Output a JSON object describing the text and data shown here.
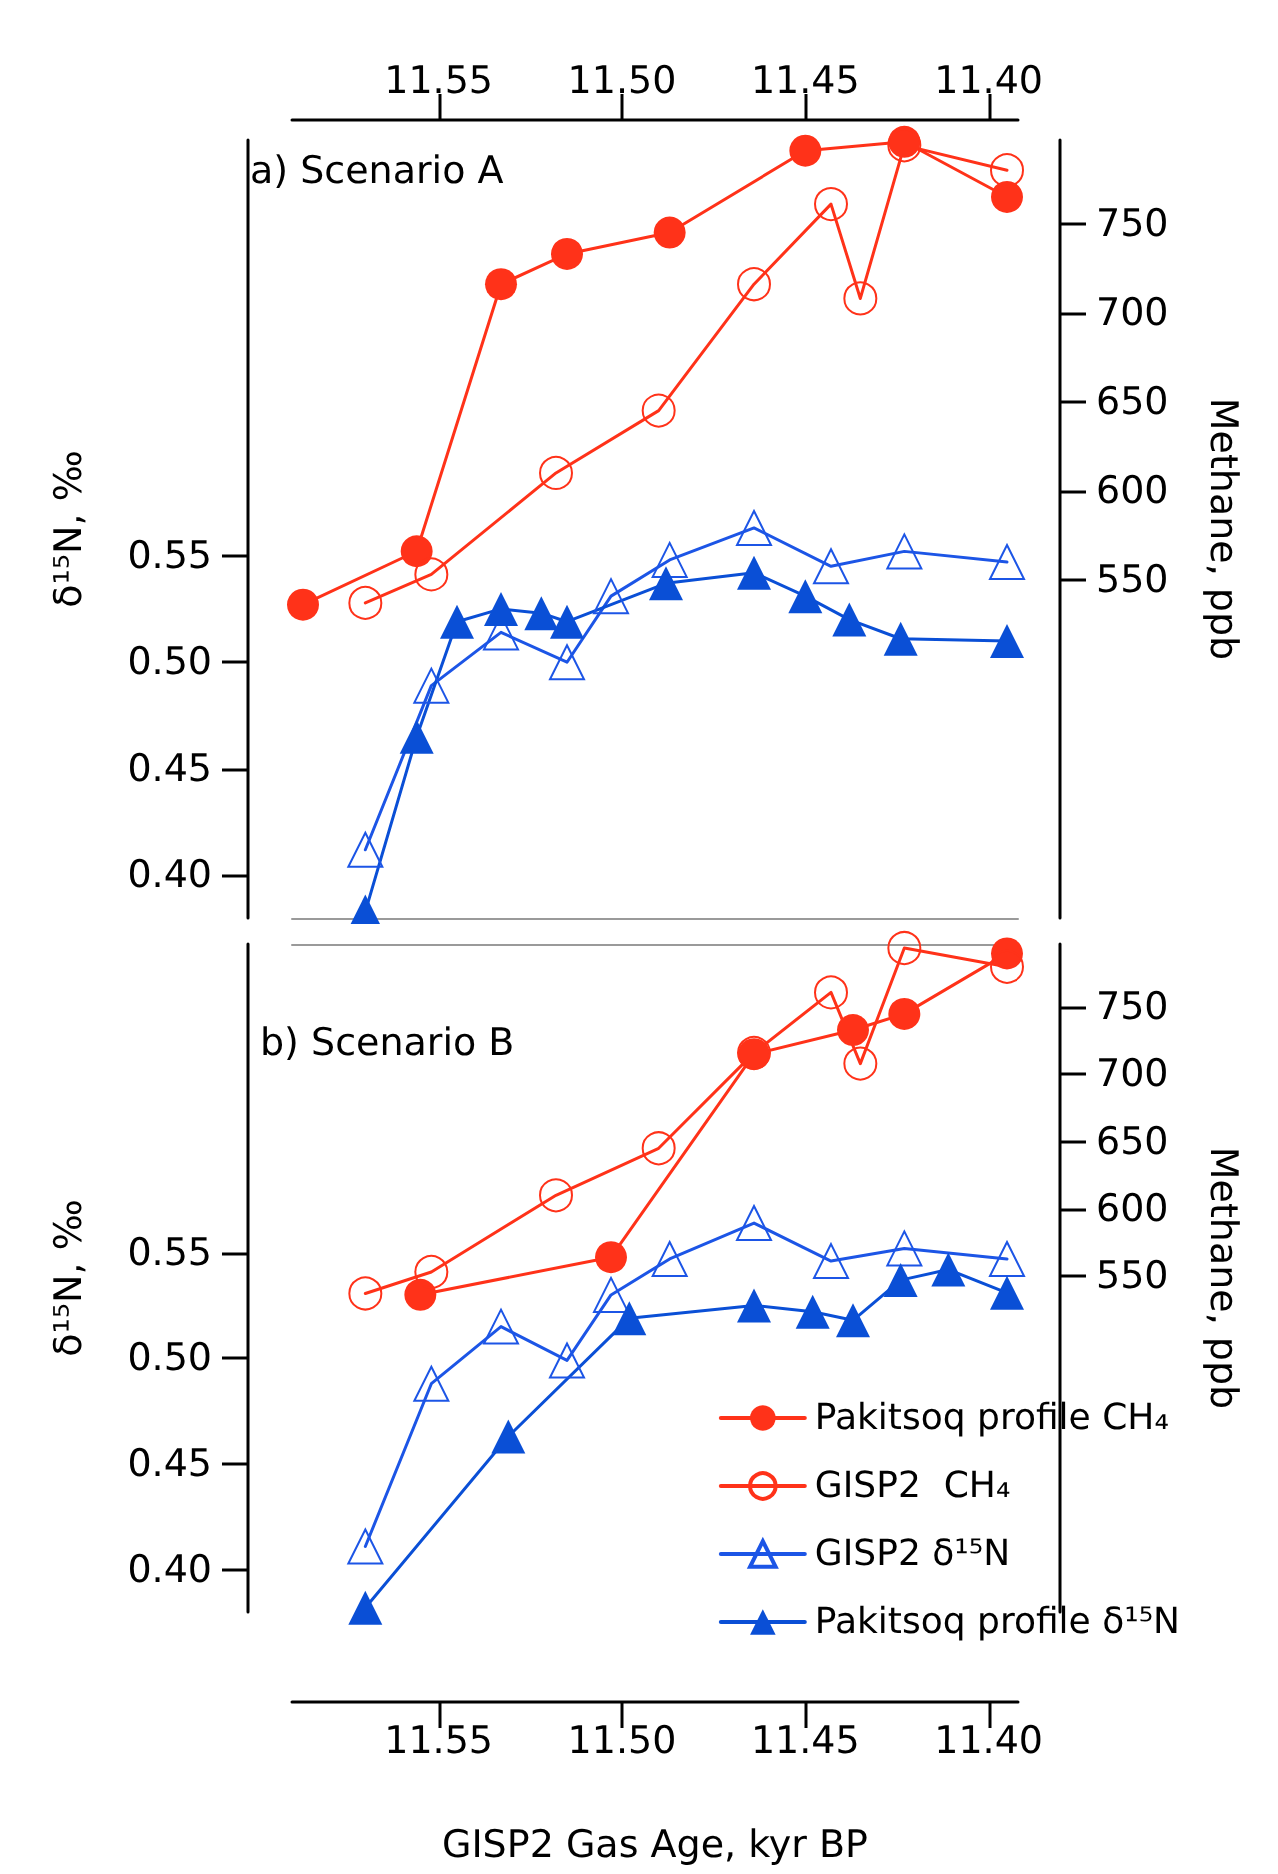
{
  "chart_data": [
    {
      "type": "line",
      "grid": false,
      "legend": false,
      "annotations": [
        "a) Scenario A"
      ],
      "ylabel": "δ¹⁵N, ‰",
      "y2label": "Methane, ppb",
      "xlim": [
        11.59,
        11.392
      ],
      "xticks": [
        {
          "value": 11.55,
          "label": "11.55"
        },
        {
          "value": 11.5,
          "label": "11.50"
        },
        {
          "value": 11.45,
          "label": "11.45"
        },
        {
          "value": 11.4,
          "label": "11.40"
        }
      ],
      "ylim": [
        0.38,
        0.745
      ],
      "yticks": [
        {
          "value": 0.4,
          "label": "0.40"
        },
        {
          "value": 0.45,
          "label": "0.45"
        },
        {
          "value": 0.5,
          "label": "0.50"
        },
        {
          "value": 0.55,
          "label": "0.55"
        }
      ],
      "y2lim": [
        360,
        797
      ],
      "y2ticks": [
        550,
        600,
        650,
        700,
        750
      ],
      "series": [
        {
          "color": "#ff3219",
          "marker": "circle",
          "axis": "y2",
          "x": [
            11.587,
            11.556,
            11.533,
            11.515,
            11.487,
            11.45,
            11.423,
            11.395
          ],
          "values": [
            536,
            566,
            716,
            733,
            745,
            791,
            796,
            765
          ]
        },
        {
          "color": "#ff3219",
          "marker": "circle-open",
          "axis": "y2",
          "x": [
            11.57,
            11.552,
            11.518,
            11.49,
            11.464,
            11.443,
            11.435,
            11.423,
            11.395
          ],
          "values": [
            537,
            553,
            610,
            645,
            716,
            761,
            708,
            794,
            780
          ]
        },
        {
          "color": "#1c55e6",
          "marker": "triangle-open",
          "x": [
            11.57,
            11.552,
            11.533,
            11.515,
            11.503,
            11.487,
            11.464,
            11.443,
            11.423,
            11.395
          ],
          "values": [
            0.412,
            0.489,
            0.514,
            0.5,
            0.531,
            0.548,
            0.563,
            0.545,
            0.552,
            0.547
          ]
        },
        {
          "color": "#0a4fd6",
          "marker": "triangle",
          "x": [
            11.57,
            11.556,
            11.545,
            11.533,
            11.522,
            11.515,
            11.488,
            11.464,
            11.45,
            11.438,
            11.424,
            11.395
          ],
          "values": [
            0.383,
            0.465,
            0.519,
            0.525,
            0.523,
            0.519,
            0.537,
            0.542,
            0.531,
            0.52,
            0.511,
            0.51
          ]
        }
      ]
    },
    {
      "type": "line",
      "grid": false,
      "legend": "bottom right",
      "annotations": [
        "b) Scenario B"
      ],
      "xlabel": "GISP2 Gas Age, kyr BP",
      "ylabel": "δ¹⁵N, ‰",
      "y2label": "Methane, ppb",
      "xlim": [
        11.59,
        11.392
      ],
      "xticks": [
        {
          "value": 11.55,
          "label": "11.55"
        },
        {
          "value": 11.5,
          "label": "11.50"
        },
        {
          "value": 11.45,
          "label": "11.45"
        },
        {
          "value": 11.4,
          "label": "11.40"
        }
      ],
      "ylim": [
        0.38,
        0.696
      ],
      "yticks": [
        {
          "value": 0.4,
          "label": "0.40"
        },
        {
          "value": 0.45,
          "label": "0.45"
        },
        {
          "value": 0.5,
          "label": "0.50"
        },
        {
          "value": 0.55,
          "label": "0.55"
        }
      ],
      "y2lim": [
        300,
        797
      ],
      "y2ticks": [
        550,
        600,
        650,
        700,
        750
      ],
      "series": [
        {
          "name": "Pakitsoq profile CH₄",
          "color": "#ff3219",
          "marker": "circle",
          "axis": "y2",
          "x": [
            11.555,
            11.503,
            11.464,
            11.437,
            11.423,
            11.395
          ],
          "values": [
            536,
            564,
            715,
            733,
            745,
            790
          ]
        },
        {
          "name": "GISP2  CH₄",
          "color": "#ff3219",
          "marker": "circle-open",
          "axis": "y2",
          "x": [
            11.57,
            11.552,
            11.518,
            11.49,
            11.464,
            11.443,
            11.435,
            11.423,
            11.395
          ],
          "values": [
            537,
            553,
            610,
            645,
            716,
            761,
            708,
            794,
            780
          ]
        },
        {
          "name": "GISP2 δ¹⁵N",
          "color": "#1c55e6",
          "marker": "triangle-open",
          "x": [
            11.57,
            11.552,
            11.533,
            11.515,
            11.503,
            11.487,
            11.464,
            11.443,
            11.423,
            11.395
          ],
          "values": [
            0.411,
            0.488,
            0.515,
            0.499,
            0.53,
            0.547,
            0.564,
            0.546,
            0.552,
            0.547
          ]
        },
        {
          "name": "Pakitsoq profile δ¹⁵N",
          "color": "#0a4fd6",
          "marker": "triangle",
          "x": [
            11.57,
            11.531,
            11.498,
            11.464,
            11.448,
            11.437,
            11.424,
            11.411,
            11.395
          ],
          "values": [
            0.382,
            0.463,
            0.519,
            0.525,
            0.522,
            0.518,
            0.537,
            0.542,
            0.531
          ]
        }
      ]
    }
  ]
}
